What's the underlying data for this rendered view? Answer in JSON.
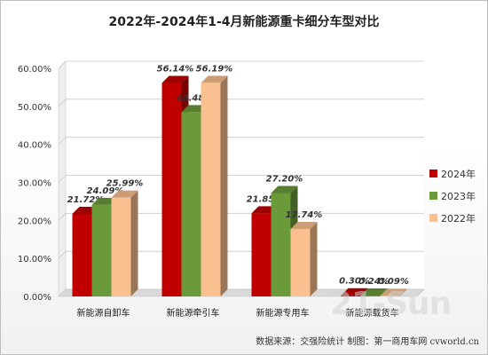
{
  "chart_data": {
    "type": "bar",
    "title": "2022年-2024年1-4月新能源重卡细分车型对比",
    "categories": [
      "新能源自卸车",
      "新能源牵引车",
      "新能源专用车",
      "新能源载货车"
    ],
    "series": [
      {
        "name": "2024年",
        "color": "#c00000",
        "values": [
          21.72,
          56.14,
          21.85,
          0.3
        ]
      },
      {
        "name": "2023年",
        "color": "#6a9a3a",
        "values": [
          24.09,
          48.48,
          27.2,
          0.24
        ]
      },
      {
        "name": "2022年",
        "color": "#fac090",
        "values": [
          25.99,
          56.19,
          17.74,
          0.09
        ]
      }
    ],
    "ylim": [
      0,
      60
    ],
    "yticks": [
      "0.00%",
      "10.00%",
      "20.00%",
      "30.00%",
      "40.00%",
      "50.00%",
      "60.00%"
    ],
    "ytick_values": [
      0,
      10,
      20,
      30,
      40,
      50,
      60
    ],
    "value_suffix": "%",
    "legend_position": "right",
    "grid": true
  },
  "source_note": "数据来源：交强险统计  制图：第一商用车网 cvworld.cn",
  "watermark": "21-Sun"
}
